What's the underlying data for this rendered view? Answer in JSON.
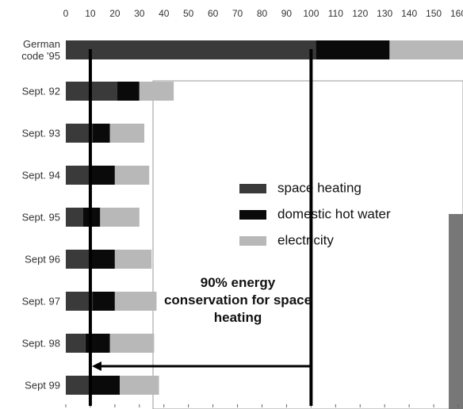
{
  "chart_data": {
    "type": "stacked-barh",
    "categories": [
      "German code '95",
      "Sept. 92",
      "Sept. 93",
      "Sept. 94",
      "Sept. 95",
      "Sept 96",
      "Sept. 97",
      "Sept. 98",
      "Sept 99"
    ],
    "series": [
      {
        "name": "space heating",
        "color": "#3a3a3a",
        "values": [
          102,
          21,
          11,
          10,
          7,
          10,
          11,
          8,
          10
        ]
      },
      {
        "name": "domestic hot water",
        "color": "#0a0a0a",
        "values": [
          30,
          9,
          7,
          10,
          7,
          10,
          9,
          10,
          12
        ]
      },
      {
        "name": "electricity",
        "color": "#b8b8b8",
        "values": [
          30,
          14,
          14,
          14,
          16,
          15,
          17,
          18,
          16
        ]
      }
    ],
    "xlim": [
      0,
      160
    ],
    "xticks": [
      0,
      10,
      20,
      30,
      40,
      50,
      60,
      70,
      80,
      90,
      100,
      110,
      120,
      130,
      140,
      150,
      160
    ],
    "reference_lines": [
      10,
      100
    ],
    "annotation": "90% energy conservation for space heating"
  }
}
